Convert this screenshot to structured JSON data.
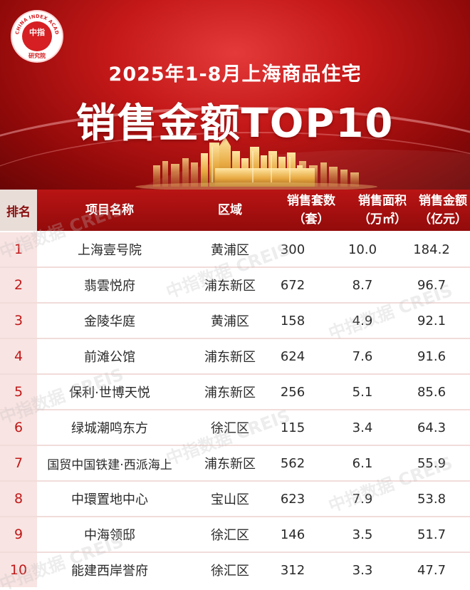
{
  "logo": {
    "ring_text": "CHINA INDEX ACADEMY",
    "center": "中指",
    "bottom": "研究院"
  },
  "header": {
    "title_line1": "2025年1-8月上海商品住宅",
    "title_line2": "销售金额TOP10"
  },
  "table": {
    "headers": {
      "rank": "排名",
      "project": "项目名称",
      "district": "区域",
      "units_line1": "销售套数",
      "units_line2": "（套）",
      "area_line1": "销售面积",
      "area_line2": "（万㎡）",
      "amount_line1": "销售金额",
      "amount_line2": "（亿元）"
    },
    "rows": [
      {
        "rank": "1",
        "project": "上海壹号院",
        "district": "黄浦区",
        "units": "300",
        "area": "10.0",
        "amount": "184.2"
      },
      {
        "rank": "2",
        "project": "翡雲悦府",
        "district": "浦东新区",
        "units": "672",
        "area": "8.7",
        "amount": "96.7"
      },
      {
        "rank": "3",
        "project": "金陵华庭",
        "district": "黄浦区",
        "units": "158",
        "area": "4.9",
        "amount": "92.1"
      },
      {
        "rank": "4",
        "project": "前滩公馆",
        "district": "浦东新区",
        "units": "624",
        "area": "7.6",
        "amount": "91.6"
      },
      {
        "rank": "5",
        "project": "保利·世博天悦",
        "district": "浦东新区",
        "units": "256",
        "area": "5.1",
        "amount": "85.6"
      },
      {
        "rank": "6",
        "project": "绿城潮鸣东方",
        "district": "徐汇区",
        "units": "115",
        "area": "3.4",
        "amount": "64.3"
      },
      {
        "rank": "7",
        "project": "国贸中国铁建·西派海上",
        "district": "浦东新区",
        "units": "562",
        "area": "6.1",
        "amount": "55.9"
      },
      {
        "rank": "8",
        "project": "中環置地中心",
        "district": "宝山区",
        "units": "623",
        "area": "7.9",
        "amount": "53.8"
      },
      {
        "rank": "9",
        "project": "中海领邸",
        "district": "徐汇区",
        "units": "146",
        "area": "3.5",
        "amount": "51.7"
      },
      {
        "rank": "10",
        "project": "能建西岸誉府",
        "district": "徐汇区",
        "units": "312",
        "area": "3.3",
        "amount": "47.7"
      }
    ]
  },
  "watermark": "中指数据 CREIS",
  "colors": {
    "brand_red": "#c41818",
    "header_red": "#b91414",
    "rank_text": "#c01818",
    "gold": "#f0c25a"
  }
}
